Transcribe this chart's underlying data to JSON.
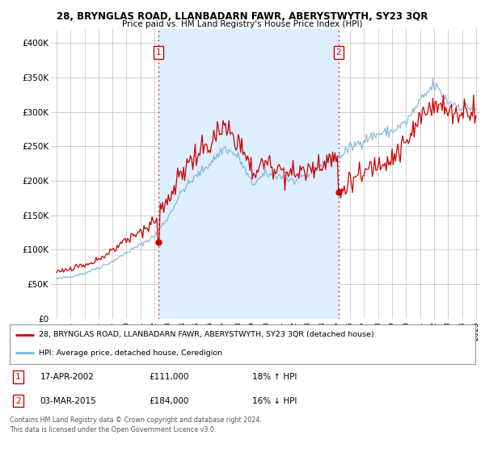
{
  "title": "28, BRYNGLAS ROAD, LLANBADARN FAWR, ABERYSTWYTH, SY23 3QR",
  "subtitle": "Price paid vs. HM Land Registry's House Price Index (HPI)",
  "ylabel_ticks": [
    "£0",
    "£50K",
    "£100K",
    "£150K",
    "£200K",
    "£250K",
    "£300K",
    "£350K",
    "£400K"
  ],
  "ytick_values": [
    0,
    50000,
    100000,
    150000,
    200000,
    250000,
    300000,
    350000,
    400000
  ],
  "ylim": [
    0,
    420000
  ],
  "hpi_color": "#7ab4d8",
  "price_color": "#cc0000",
  "vline_color": "#cc0000",
  "shade_color": "#ddeeff",
  "marker1_year": 2002.29,
  "marker2_year": 2015.17,
  "marker1_price": 111000,
  "marker2_price": 184000,
  "legend_line1": "28, BRYNGLAS ROAD, LLANBADARN FAWR, ABERYSTWYTH, SY23 3QR (detached house)",
  "legend_line2": "HPI: Average price, detached house, Ceredigion",
  "table_row1": [
    "1",
    "17-APR-2002",
    "£111,000",
    "18% ↑ HPI"
  ],
  "table_row2": [
    "2",
    "03-MAR-2015",
    "£184,000",
    "16% ↓ HPI"
  ],
  "footnote": "Contains HM Land Registry data © Crown copyright and database right 2024.\nThis data is licensed under the Open Government Licence v3.0.",
  "background_color": "#ffffff",
  "grid_color": "#d0d0d0",
  "xlim_left": 1994.6,
  "xlim_right": 2025.3
}
